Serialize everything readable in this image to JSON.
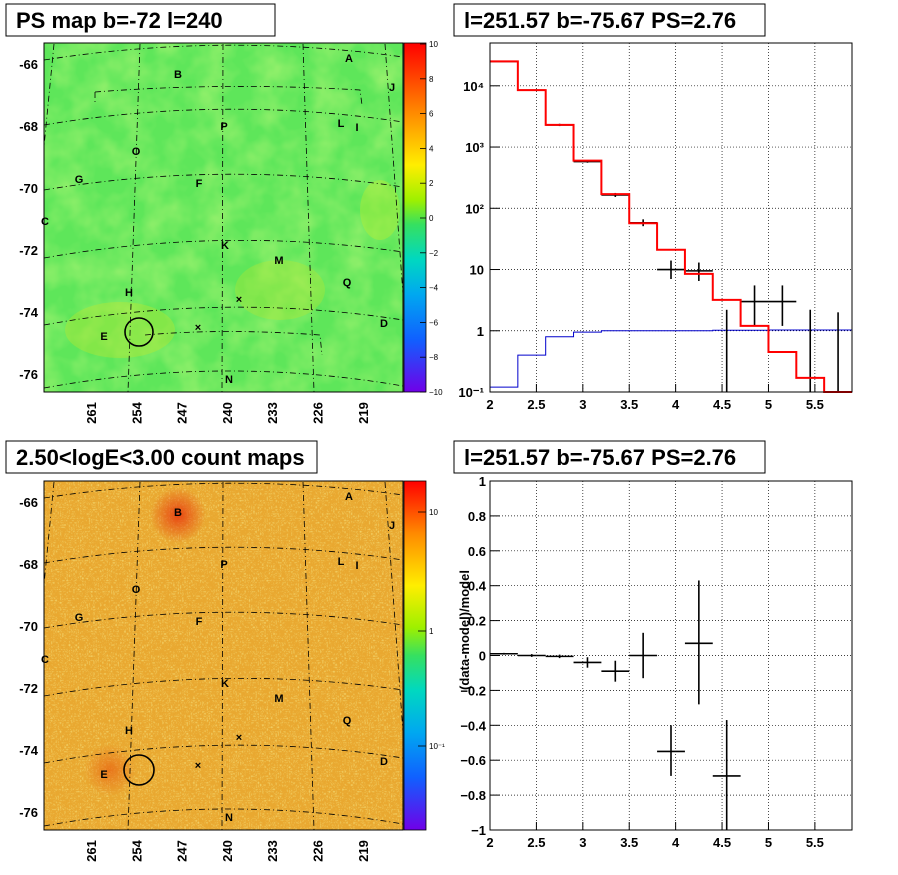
{
  "colors": {
    "model_red": "#ff0000",
    "data_black": "#000000",
    "background_blue": "#0000cc",
    "map_green": "#5ee65a",
    "count_orange": "#e9a830"
  },
  "chart_data": [
    {
      "type": "heatmap",
      "panel": "ps-map",
      "title": "PS map b=-72 l=240",
      "x_ticks": [
        "261",
        "254",
        "247",
        "240",
        "233",
        "226",
        "219"
      ],
      "y_ticks": [
        "-66",
        "-68",
        "-70",
        "-72",
        "-74",
        "-76"
      ],
      "colorbar_ticks": [
        "10",
        "8",
        "6",
        "4",
        "2",
        "0",
        "−2",
        "−4",
        "−6",
        "−8",
        "−10"
      ],
      "colorbar_range": [
        -10,
        10
      ],
      "sources": [
        "A",
        "B",
        "C",
        "D",
        "E",
        "F",
        "G",
        "H",
        "I",
        "J",
        "K",
        "L",
        "M",
        "N",
        "O",
        "P",
        "Q"
      ],
      "markers": [
        "×",
        "×"
      ]
    },
    {
      "type": "line",
      "panel": "spectrum",
      "title": "l=251.57 b=-75.67 PS=2.76",
      "xlim": [
        2,
        5.9
      ],
      "ylim": [
        0.1,
        50000
      ],
      "y_scale": "log",
      "x_ticks": [
        "2",
        "2.5",
        "3",
        "3.5",
        "4",
        "4.5",
        "5",
        "5.5"
      ],
      "y_ticks": [
        "10⁻¹",
        "1",
        "10",
        "10²",
        "10³",
        "10⁴"
      ],
      "grid": true,
      "model_step": {
        "edges": [
          2.0,
          2.3,
          2.6,
          2.9,
          3.2,
          3.5,
          3.8,
          4.1,
          4.4,
          4.7,
          5.0,
          5.3,
          5.6,
          5.9
        ],
        "values": [
          25000,
          8500,
          2300,
          600,
          170,
          57,
          21,
          8.5,
          3.2,
          1.2,
          0.45,
          0.17,
          0.1
        ]
      },
      "background_step": {
        "edges": [
          2.0,
          2.3,
          2.6,
          2.9,
          3.2,
          3.5,
          3.8,
          4.1,
          4.4,
          4.7,
          5.0,
          5.3,
          5.6,
          5.9
        ],
        "values": [
          0.12,
          0.4,
          0.8,
          0.95,
          1.0,
          1.0,
          1.0,
          1.0,
          1.02,
          1.02,
          1.03,
          1.03,
          1.03
        ]
      },
      "data_points": [
        {
          "x": 2.15,
          "y": 25000,
          "xerr": 0.15,
          "ylo": 24600,
          "yhi": 25400
        },
        {
          "x": 2.45,
          "y": 8500,
          "xerr": 0.15,
          "ylo": 8300,
          "yhi": 8700
        },
        {
          "x": 2.75,
          "y": 2300,
          "xerr": 0.15,
          "ylo": 2200,
          "yhi": 2400
        },
        {
          "x": 3.05,
          "y": 580,
          "xerr": 0.15,
          "ylo": 555,
          "yhi": 605
        },
        {
          "x": 3.35,
          "y": 165,
          "xerr": 0.15,
          "ylo": 153,
          "yhi": 178
        },
        {
          "x": 3.65,
          "y": 58,
          "xerr": 0.15,
          "ylo": 51,
          "yhi": 66
        },
        {
          "x": 3.95,
          "y": 10,
          "xerr": 0.15,
          "ylo": 7,
          "yhi": 14
        },
        {
          "x": 4.25,
          "y": 9.5,
          "xerr": 0.15,
          "ylo": 6.5,
          "yhi": 13
        },
        {
          "x": 4.55,
          "y": 1.0,
          "xerr": 0.0,
          "ylo": 0.1,
          "yhi": 2.2
        },
        {
          "x": 4.85,
          "y": 3.0,
          "xerr": 0.15,
          "ylo": 1.2,
          "yhi": 5.5
        },
        {
          "x": 5.15,
          "y": 3.0,
          "xerr": 0.15,
          "ylo": 1.2,
          "yhi": 5.5
        },
        {
          "x": 5.45,
          "y": 1.0,
          "xerr": 0.0,
          "ylo": 0.1,
          "yhi": 2.2
        },
        {
          "x": 5.75,
          "y": 1.0,
          "xerr": 0.0,
          "ylo": 0.1,
          "yhi": 2.0
        }
      ]
    },
    {
      "type": "heatmap",
      "panel": "count-map",
      "title": "2.50<logE<3.00 count maps",
      "x_ticks": [
        "261",
        "254",
        "247",
        "240",
        "233",
        "226",
        "219"
      ],
      "y_ticks": [
        "-66",
        "-68",
        "-70",
        "-72",
        "-74",
        "-76"
      ],
      "colorbar_ticks": [
        "10",
        "1",
        "10⁻¹"
      ],
      "colorbar_scale": "log",
      "sources": [
        "A",
        "B",
        "C",
        "D",
        "E",
        "F",
        "G",
        "H",
        "I",
        "J",
        "K",
        "L",
        "M",
        "N",
        "O",
        "P",
        "Q"
      ],
      "markers": [
        "×",
        "×"
      ]
    },
    {
      "type": "scatter",
      "panel": "residual",
      "title": "l=251.57 b=-75.67 PS=2.76",
      "ylabel": "(data-model)/model",
      "xlim": [
        2,
        5.9
      ],
      "ylim": [
        -1,
        1
      ],
      "x_ticks": [
        "2",
        "2.5",
        "3",
        "3.5",
        "4",
        "4.5",
        "5",
        "5.5"
      ],
      "y_ticks": [
        "−1",
        "−0.8",
        "−0.6",
        "−0.4",
        "−0.2",
        "0",
        "0.2",
        "0.4",
        "0.6",
        "0.8",
        "1"
      ],
      "grid": true,
      "data_points": [
        {
          "x": 2.15,
          "y": 0.01,
          "xerr": 0.15,
          "ylo": 0.005,
          "yhi": 0.015
        },
        {
          "x": 2.45,
          "y": 0.0,
          "xerr": 0.15,
          "ylo": -0.008,
          "yhi": 0.008
        },
        {
          "x": 2.75,
          "y": -0.005,
          "xerr": 0.15,
          "ylo": -0.015,
          "yhi": 0.005
        },
        {
          "x": 3.05,
          "y": -0.04,
          "xerr": 0.15,
          "ylo": -0.07,
          "yhi": -0.01
        },
        {
          "x": 3.35,
          "y": -0.09,
          "xerr": 0.15,
          "ylo": -0.15,
          "yhi": -0.03
        },
        {
          "x": 3.65,
          "y": 0.0,
          "xerr": 0.15,
          "ylo": -0.13,
          "yhi": 0.13
        },
        {
          "x": 3.95,
          "y": -0.55,
          "xerr": 0.15,
          "ylo": -0.69,
          "yhi": -0.4
        },
        {
          "x": 4.25,
          "y": 0.07,
          "xerr": 0.15,
          "ylo": -0.28,
          "yhi": 0.43
        },
        {
          "x": 4.55,
          "y": -0.69,
          "xerr": 0.15,
          "ylo": -1.0,
          "yhi": -0.37
        }
      ]
    }
  ]
}
